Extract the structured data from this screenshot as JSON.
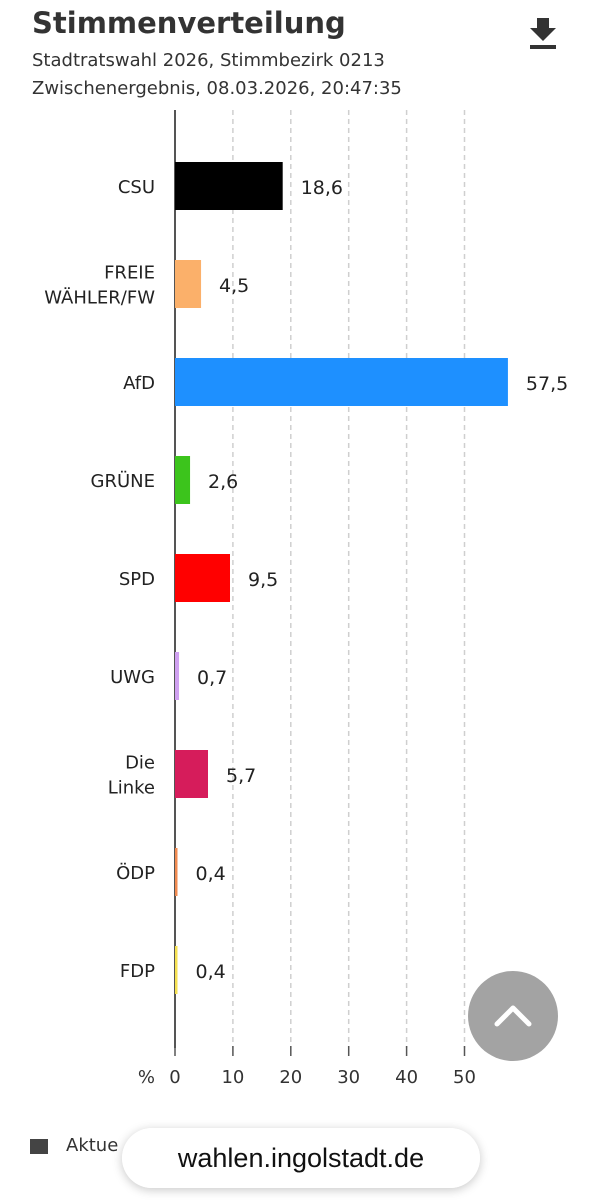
{
  "header": {
    "title": "Stimmenverteilung",
    "subtitle_1": "Stadtratswahl 2026, Stimmbezirk 0213",
    "subtitle_2": "Zwischenergebnis, 08.03.2026, 20:47:35",
    "download_icon": "download-icon"
  },
  "chart_data": {
    "type": "bar",
    "orientation": "horizontal",
    "unit": "%",
    "categories": [
      "CSU",
      "FREIE WÄHLER/FW",
      "AfD",
      "GRÜNE",
      "SPD",
      "UWG",
      "Die Linke",
      "ÖDP",
      "FDP"
    ],
    "category_lines": [
      [
        "CSU"
      ],
      [
        "FREIE",
        "WÄHLER/FW"
      ],
      [
        "AfD"
      ],
      [
        "GRÜNE"
      ],
      [
        "SPD"
      ],
      [
        "UWG"
      ],
      [
        "Die",
        "Linke"
      ],
      [
        "ÖDP"
      ],
      [
        "FDP"
      ]
    ],
    "values": [
      18.6,
      4.5,
      57.5,
      2.6,
      9.5,
      0.7,
      5.7,
      0.4,
      0.4
    ],
    "value_labels": [
      "18,6",
      "4,5",
      "57,5",
      "2,6",
      "9,5",
      "0,7",
      "5,7",
      "0,4",
      "0,4"
    ],
    "colors": [
      "#000000",
      "#fbb06a",
      "#1e90ff",
      "#3cc41c",
      "#ff0000",
      "#cfa0f0",
      "#d61c5b",
      "#f08a50",
      "#f5e050"
    ],
    "xticks": [
      0,
      10,
      20,
      30,
      40,
      50
    ],
    "xtick_labels": [
      "0",
      "10",
      "20",
      "30",
      "40",
      "50"
    ],
    "xlim": [
      0,
      60
    ],
    "grid": "vertical dashed"
  },
  "legend": {
    "label": "Aktue"
  },
  "scroll_top_icon": "chevron-up-icon",
  "url_bar": {
    "text": "wahlen.ingolstadt.de"
  }
}
